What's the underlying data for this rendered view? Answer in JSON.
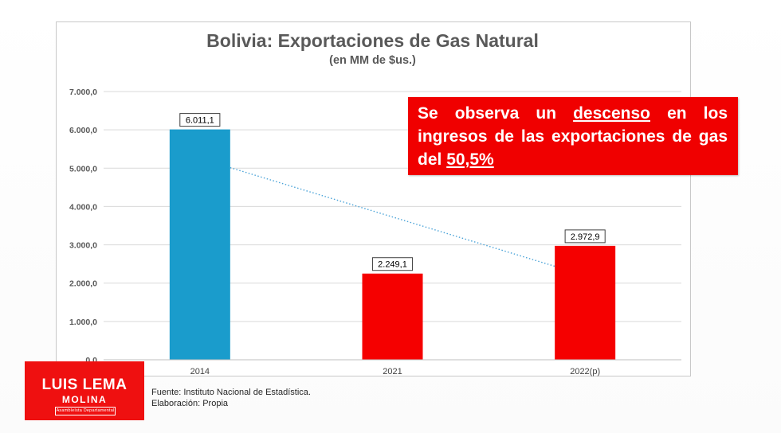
{
  "chart_data": {
    "type": "bar",
    "title": "Bolivia: Exportaciones de Gas Natural",
    "subtitle": "(en MM de $us.)",
    "categories": [
      "2014",
      "2021",
      "2022(p)"
    ],
    "values": [
      6011.1,
      2249.1,
      2972.9
    ],
    "value_labels": [
      "6.011,1",
      "2.249,1",
      "2.972,9"
    ],
    "bar_colors": [
      "#1a9ccc",
      "#f50000",
      "#f50000"
    ],
    "ylim": [
      0,
      7000
    ],
    "yticks": [
      0,
      1000,
      2000,
      3000,
      4000,
      5000,
      6000,
      7000
    ],
    "ytick_labels": [
      "0,0",
      "1.000,0",
      "2.000,0",
      "3.000,0",
      "4.000,0",
      "5.000,0",
      "6.000,0",
      "7.000,0"
    ],
    "grid": true,
    "trendline": {
      "style": "dotted",
      "color": "#4aa3d8",
      "from_category": "2014",
      "to_category": "2022(p)"
    },
    "xlabel": "",
    "ylabel": ""
  },
  "callout": {
    "part1": "Se observa un ",
    "highlight1": "descenso",
    "part2": " en los ingresos de las exportaciones de gas del ",
    "highlight2": "50,5%",
    "background": "#f00000"
  },
  "logo": {
    "name": "LUIS LEMA",
    "surname": "MOLINA",
    "role": "Asambleísta Departamental",
    "background": "#ef1010"
  },
  "source": {
    "line1": "Fuente: Instituto Nacional de Estadística.",
    "line2": "Elaboración: Propia"
  }
}
